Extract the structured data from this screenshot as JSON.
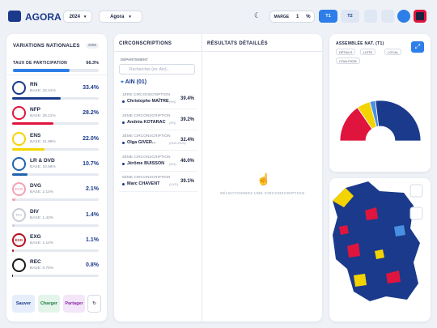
{
  "header": {
    "logo": "AGORA",
    "year": "2024",
    "source": "Agora",
    "margin_label": "MARGE",
    "margin_value": "1",
    "margin_unit": "%",
    "round1": "T1",
    "round2": "T2"
  },
  "left": {
    "title": "VARIATIONS NATIONALES",
    "badge": "2085",
    "participation": {
      "label": "TAUX DE PARTICIPATION",
      "value": 66.3,
      "value_label": "66.3%"
    },
    "parties": [
      {
        "name": "RN",
        "base": "BASE: 33.41%",
        "value": 33.4,
        "value_label": "33.4%",
        "color": "#1b3a8c"
      },
      {
        "name": "NFP",
        "base": "BASE: 28.21%",
        "value": 28.2,
        "value_label": "28.2%",
        "color": "#e0153d"
      },
      {
        "name": "ENS",
        "base": "BASE: 21.98%",
        "value": 22.0,
        "value_label": "22.0%",
        "color": "#f4d400"
      },
      {
        "name": "LR & DVD",
        "base": "BASE: 10.68%",
        "value": 10.7,
        "value_label": "10.7%",
        "color": "#1f63b0"
      },
      {
        "name": "DVG",
        "base": "BASE: 2.14%",
        "value": 2.1,
        "value_label": "2.1%",
        "color": "#f3a3b4"
      },
      {
        "name": "DIV",
        "base": "BASE: 1.42%",
        "value": 1.4,
        "value_label": "1.4%",
        "color": "#c9ced8"
      },
      {
        "name": "EXG",
        "base": "BASE: 1.14%",
        "value": 1.1,
        "value_label": "1.1%",
        "color": "#b3121f"
      },
      {
        "name": "REC",
        "base": "BASE: 0.75%",
        "value": 0.8,
        "value_label": "0.8%",
        "color": "#1a1a1a"
      }
    ],
    "buttons": [
      "Sauver",
      "Charger",
      "Partager"
    ]
  },
  "middle": {
    "title": "CIRCONSCRIPTIONS",
    "department_label": "DÉPARTEMENT",
    "search_placeholder": "Rechercher (ex: Ain)...",
    "department": "AIN (01)",
    "items": [
      {
        "label": "1ÈRE CIRCONSCRIPTION",
        "name": "Christophe MAÎTRE",
        "party": "(RN)",
        "value": "39.4%",
        "color": "#1b3a8c"
      },
      {
        "label": "2ÈME CIRCONSCRIPTION",
        "name": "Andréa KOTARAC",
        "party": "(RN)",
        "value": "39.2%",
        "color": "#1b3a8c"
      },
      {
        "label": "3ÈME CIRCONSCRIPTION",
        "name": "Olga GIVER...",
        "party": "(ENS-REN)",
        "value": "32.4%",
        "color": "#1b3a8c"
      },
      {
        "label": "4ÈME CIRCONSCRIPTION",
        "name": "Jérôme BUISSON",
        "party": "(RN)",
        "value": "46.0%",
        "color": "#1b3a8c"
      },
      {
        "label": "5ÈME CIRCONSCRIPTION",
        "name": "Marc CHAVENT",
        "party": "(UXD)",
        "value": "39.1%",
        "color": "#1b3a8c"
      }
    ],
    "results_title": "RÉSULTATS DÉTAILLÉS",
    "empty_hint": "SÉLECTIONNEZ UNE CIRCONSCRIPTION"
  },
  "right": {
    "title": "ASSEMBLÉE NAT. (T1)",
    "chips": [
      "DÉTAILS",
      "LISTE",
      "LOCAL",
      "COALITION"
    ],
    "hemicycle": {
      "type": "pie",
      "values": [
        178,
        62,
        26,
        311
      ],
      "colors": [
        "#e0153d",
        "#f4d400",
        "#4a90e2",
        "#1b3a8c"
      ]
    }
  }
}
